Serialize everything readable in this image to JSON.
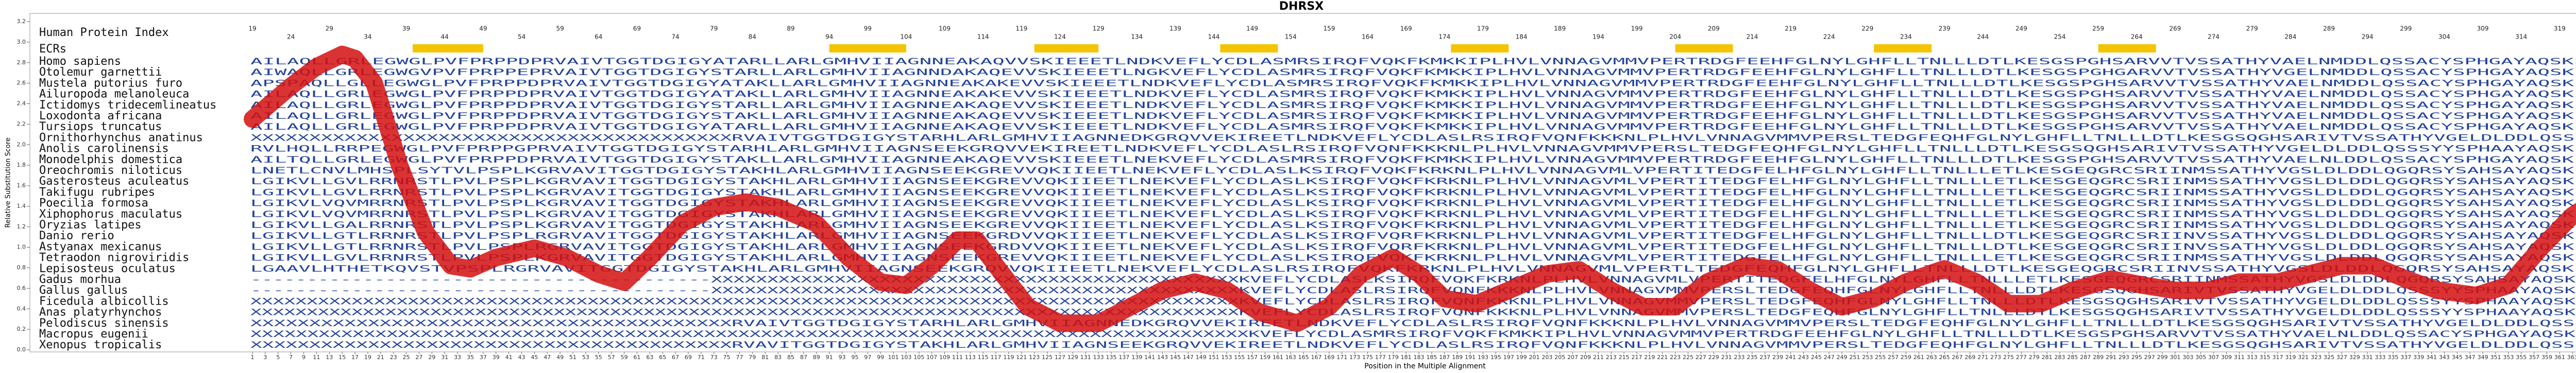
{
  "chart_data": {
    "type": "line",
    "title": "DHRSX",
    "y_label": "Relative Substitution Score",
    "x_label": "Position in the Multiple Alignment",
    "human_index_label": "Human Protein Index",
    "ecr_label": "ECRs",
    "human_index": {
      "x": [
        1,
        7,
        13,
        19,
        25,
        31,
        37,
        43,
        49,
        55,
        61,
        67,
        73,
        79,
        85,
        91,
        97,
        103,
        109,
        115,
        121,
        127,
        133,
        139,
        145,
        151,
        157,
        163,
        169,
        175,
        181,
        187,
        193,
        199,
        205,
        211,
        217,
        223,
        229,
        235,
        241,
        247,
        253,
        259,
        265,
        271,
        277,
        283,
        289,
        295,
        301,
        307,
        313,
        319,
        325,
        331,
        337,
        343,
        349,
        355,
        361,
        367
      ],
      "labels": [
        19,
        24,
        29,
        34,
        39,
        44,
        49,
        54,
        59,
        64,
        69,
        74,
        79,
        84,
        89,
        94,
        99,
        104,
        109,
        114,
        119,
        124,
        129,
        134,
        139,
        144,
        149,
        154,
        159,
        164,
        169,
        174,
        179,
        184,
        189,
        194,
        199,
        204,
        209,
        214,
        219,
        224,
        229,
        234,
        239,
        244,
        249,
        254,
        259,
        264,
        269,
        274,
        279,
        284,
        289,
        294,
        299,
        304,
        309,
        314,
        319,
        324
      ]
    },
    "ecrs": [
      [
        26,
        37
      ],
      [
        91,
        103
      ],
      [
        123,
        133
      ],
      [
        152,
        161
      ],
      [
        188,
        197
      ],
      [
        223,
        232
      ],
      [
        254,
        263
      ],
      [
        289,
        298
      ]
    ],
    "ecr_color": "#f5c400",
    "species": [
      "Homo sapiens",
      "Otolemur garnettii",
      "Mustela putorius furo",
      "Ailuropoda melanoleuca",
      "Ictidomys tridecemlineatus",
      "Loxodonta africana",
      "Tursiops truncatus",
      "Ornithorhynchus anatinus",
      "Anolis carolinensis",
      "Monodelphis domestica",
      "Oreochromis niloticus",
      "Gasterosteus aculeatus",
      "Takifugu rubripes",
      "Poecilia formosa",
      "Xiphophorus maculatus",
      "Oryzias latipes",
      "Danio rerio",
      "Astyanax mexicanus",
      "Tetraodon nigroviridis",
      "Lepisosteus oculatus",
      "Gadus morhua",
      "Gallus gallus",
      "Ficedula albicollis",
      "Anas platyrhynchos",
      "Pelodiscus sinensis",
      "Macropus eugenii",
      "Xenopus tropicalis"
    ],
    "sequences": [
      "AILAQLLGRLEGWGLPVFPRPPDPRVAIVTGGTDGIGYATARLLARLGMHVIIAGNNEAKAQVVSKIEEETLNDKVEFLYCDLASMRSIRQFVQKFKMKKIPLHVLVNNAGVMMVPERTRDGFEEHFGLNYLGHFLLTNLLLDTLKESGSPGHSARVVTVSSATHYVAELNMDDLQSSACYSPHGAYAQSKLA",
      "AIWAQLLGRLEGWGVPVFPRPPEPRVAIVTGGTDGIGYSTARLLARLGMHVIIAGNNDAKAQEVVSKIEEETLNGKVEFLYCDLASMRSIRQFVQKFKMKKIPLHVLVNNAGVMMVPERTRDGFEEHFGLNYLGHFLLTNLLLDTLKESGSPGHGARVVTVSSATHYVGELNMDDLQSSACYSPHGAYAQSKLA",
      "APSPAQLLGLLEGWGLPVFPRPPDPRVAIVTGGTDGIGYATAKLLARLGMHVIIAGNNEAKAKEVVSKIEEETLNDKVEFLYCDLASMRSIRQFVQKFKMKKIPLHVLVNNAGVMMVPERTRDGFEEHFGLNYLGHFLLTNLLLDTLKESGSPGHSARVVTVSSATHYVAELNMDDLQSSACYSPHGAYAQSKLA",
      "AILAQLLGRLEGWGLPVFPRPPDPRVAIVTGGTDGIGYATAKLLARLGMHVIIAGNNEAKAKEVVSKIEEETLNDKVEFLYCDLASMRSIRQFVQKFKMKKIPLHVLVNNAGVMMVPERTRDGFEEHFGLNYLGHFLLTNLLLDTLKESGSPGHSARVVTVSSATHYVAELNMDDLQSSACYSPHGAYAQSKLA",
      "AILAQLLGRLEGWGLPVFPRPPDPRVAIVTGGTDGIGYSTARLLARLGMHVIIAGNNEAKAQEVVSKIEEETLNDKVEFLYCDLASMRSIRQFVQKFKMKKIPLHVLVNNAGVMMVPERTRDGFEEHFGLNYLGHFLLTNLLLDTLKESGSPGHSARVVTVSSATHYVAELNMDDLQSSACYSPHGAYAQSKLA",
      "AILAQLLGRLEGWGLPVFPRPPDPRVAIVTGGTDGIGYSTAKLLARLGMHVIIAGNNEAKAQEVVSKIEEETLNDKVEFLYCDLASMRSIRQFVQKFKMKKIPLHVLVNNAGVMMVPERTRDGFEEHFGLNYLGHFLLTNLLLDTLKESGSPGHSARVVTVSSATHYVAELNMDDLQSSACYSPHGAYAQSKLA",
      "AILAQLLGRLEGWGLPVFPRPPDPRVAIVTGGTDGIGYATARLLARLGMHVIIAGNNEAKAQEVVSKIEEETLNDKVEFLYCDLASMRSIRQFVQKFKMKKIPLHVLVNNAGVMMVPERTRDGFEEHFGLNYLGHFLLTNLLLDTLKESGSPGHSARVVTVSSATHYVAELNMDDLQSSACYSPHGAYAQSKLA",
      "XXXXXXXXXXXXXXXXXXXXXXXXXXXXXXXXXXXXXXXXXRVAIVTGGTDGIGYSTARHLARLGMHVIIAGNNEDKGRQVVEKIREETLNDKVEFLYCDLASLRSIRQFVQNFKKKNLPLHVLVNNAGVMMVPERSLTEDGFEQHFGLNYLGHFLLTNLLLDTLKESGSQGHSARIVTVSSATHYVGELDLDDLQSSSY",
      "RVLHQLLRRPEGWGLPVFPRPPGPRVAIVTGGTDGIGYSTARHLARLGMHVIIAGNSEEKGRQVVEKIREETLNDKVEFLYCDLASLRSIRQFVQNFKKKNLPLHVLVNNAGVMMVPERSLTEDGFEQHFGLNYLGHFLLTNLLLDTLKESGSQGHSARIVTVSSATHYVGELDLDDLQSSSYYSPHAAYAQSKLA",
      "AILTQLLGRLEGWGLPVFPRPPDPRVAIVTGGTDGIGYSTAKLLARLGMHVIIAGNNEAKAQEVVSKIEEETLNEKVEFLYCDLASMRSIRQFVQKFKMKKIPLHVLVNNAGVMMVPERTRDGFEEHFGLNYLGHFLLTNLLLDTLKESGSPGHSARVVTVSSATHYVAELNLDDLQSSACYSPHGAYAQSKLA",
      "LNETLCNVLMHSPLSYTVLPSPLKGRVAVITGGTDGIGYSTAKHLARLGMHVIIAGNSEEKGREVVQKIIEETLNEKVEFLYCDLASLKSIRQFVQKFKRKNLPLHVLVNNAGVMLVPERTITEDGFELHFGLNYLGHFLLTNLLLETLKESGEQGRCSRIINMSSATHYVGSLDLDDLQGQRSYSAHSAYAQSKLA",
      "LGIKVLLGVLRRNRSTLPVLPSPLKGRVAVITGGTDGIGYSTAKHLARLGMHVIIAGNSEEKGREVVQKIIEETLNEKVEFLYCDLASLKSIRQFVQKFKRKNLPLHVLVNNAGVMLVPERTITEDGFELHFGLNYLGHFLLTNLLLETLKESGEQGRCSRIINMSSATHYVGSLDLDDLQGQRSYSAHSAYAQSKLA",
      "LGIKVLLGVLRRNRSTLPVLPSPLKGRVAVITGGTDGIGYSTAKHLARLGMHVIIAGNSEEKGREVVQKIIEETLNEKVEFLYCDLASLKSIRQFVQKFKRKNLPLHVLVNNAGVMLVPERTITEDGFELHFGLNYLGHFLLTNLLLETLKESGEQGRCSRIINMSSATHYVGSLDLDDLQGQRSYSAHSAYAQSKLA",
      "LGIKVLVQVMRRNRSTLPVLPSPLKGRVAVITGGTDGIGYSTAKHLARLGMHVIIAGNSEEKGREVVQKIIEETLNEKVEFLYCDLASLKSIRQFVQKFKRKNLPLHVLVNNAGVMLVPERTITEDGFELHFGLNYLGHFLLTNLLLETLKESGEQGRCSRIINMSSATHYVGSLDLDDLQGQRSYSAHSAYAQSKLA",
      "LGIKVLVQVMRRNRSTLPVLPSPLKGRVAVITGGTDGIGYSTAKHLARLGMHVIIAGNSEEKGREVVQKIIEETLNEKVEFLYCDLASLKSIRQFVQKFKRKNLPLHVLVNNAGVMLVPERTITEDGFELHFGLNYLGHFLLTNLLLETLKESGEQGRCSRIINMSSATHYVGSLDLDDLQGQRSYSAHSAYAQSKLA",
      "LGIKVLLGALRRNRSTLPVLPSPLKGRVAVITGGTDGIGYSTAKHLARLGMHVIIAGNSEEKGREVVQKIIEETLNEKVEFLYCDLASLKSIRQFVQKFKRKNLPLHVLVNNAGVMLVPERTITEDGFELHFGLNYLGHFLLTNLLLETLKESGEQGRCSRIINMSSATHYVGSLDLDDLQGQRSYSAHSAYAQSKLA",
      "LGIKVLLGTLRRNRSTLPVLPSPLRGRVAVITGGTDGIGYSTAKHLARLGMHVIIAGNSEEKGRDVVQKIIEETLNEKVEFLYCDLASLKSIRQFVQRFKRKNLPLHVLVNNAGVMLVPERTITEDGFELHFGLNYLGHFLLTNLLLDTLKESGEQGRCSRIINVSSATHYVGSLDLDDLQGQRSYSAHSAYAQSKLA",
      "LGIKVLLGTLRRNRSTLPVLPSPLRGRVAVITGGTDGIGYSTAKHLARLGMHVIIAGNSEEKGRDVVQKIIEETLNEKVEFLYCDLASLKSIRQFVQRFKRKNLPLHVLVNNAGVMLVPERTITEDGFELHFGLNYLGHFLLTNLLLDTLKESGEQGRCSRIINVSSATHYVGSLDLDDLQGQRSYSAHSAYAQSKLA",
      "LGIKVLLGVLRRNRSTLPVLPSPLKGRVAVITGGTDGIGYSTAKHLARLGMHVIIAGNSEEKGREVVQKIIEETLNEKVEFLYCDLASLKSIRQFVQKFKRKNLPLHVLVNNAGVMLVPERTITEDGFELHFGLNYLGHFLLTNLLLETLKESGEQGRCSRIINMSSATHYVGSLDLDDLQGQRSYSAHSAYAQSKLA",
      "LGAAVLHTHETKQVSTVPSPLRGRVAVITGGTDGIGYSTAKHLARLGMHVIIAGNSEEKGRQVVQKIIEETLNEKVEFLYCDLASLRSIRQFVQKFKRKNLPLHVLVNNAGVMLVPERTLTEDGFEQHFGLNYLGHFLLTNLLLDTLKESGEQGRCSRIINVSSATHYVGSLDLDDLQGQRSYSAHSAYAQSKLA",
      "-----------------------------------------XXXXXXXXXXXXXXXXXXXXXXXXXXXXXXXXXXXXXXXXXXXXXXXKVEFLYCDLASLKSIRQFVQKFKRKNLPLHVLVNNAGVMLVPERTITEDGFELHFGLNYLGHFLLTNLLLETLKESGEQGRCSRIINMSSATHYVGSLDLDDLQGQRSYSAHSAYAQSKLA",
      "-----------------------------------------XXXXXXXXXXXXXXXXXXXXXXXXXXXXXXXXXXXXXXXXXXXXXXXKVEFLYCDLASLRSIRQFVQNFKKKNLPLHVLVNNAGVMMVPERSLTEDGFEQHFGLNYLGHFLLTNLLLDTLKESGSQGHSARIVTVSSATHYVGELDLDDLQSSSYYSPHAAYAQSKLA",
      "XXXXXXXXXXXXXXXXXXXXXXXXXXXXXXXXXXXXXXXXXXXXXXXXXXXXXXXXXXXXXXXXXXXXXXXXXXXXXXXXXXXXXXXXKVEFLYCDLASLRSIRQFVQNFKKKNLPLHVLVNNAGVMMVPERSLTEDGFEQHFGLNYLGHFLLTNLLLDTLKESGSQGHSARIVTVSSATHYVGELDLDDLQSSSYYSPHAAYAQSKLA",
      "XXXXXXXXXXXXXXXXXXXXXXXXXXXXXXXXXXXXXXXXXXXXXXXXXXXXXXXXXXXXXXXXXXXXXXXXXXXXXXXXXXXXXXXXKVEFLYCDLASLRSIRQFVQNFKKKNLPLHVLVNNAGVMMVPERSLTEDGFEQHFGLNYLGHFLLTNLLLDTLKESGSQGHSARIVTVSSATHYVGELDLDDLQSSSYYSPHAAYAQSKLA",
      "XXXXXXXXXXXXXXXXXXXXXXXXXXXXXXXXXXXXXXXXXRVAIVTGGTDGIGYSTARHLARLGMHVIIAGNNEDKGRQVVEKIREETLNDKVEFLYCDLASLRSIRQFVQNFKKKNLPLHVLVNNAGVMMVPERSLTEDGFEQHFGLNYLGHFLLTNLLLDTLKESGSQGHSARIVTVSSATHYVGELDLDDLQSSSY",
      "XXXXXXXXXXXXXXXXXXXXXXXXXXXXXXXXXXXXXXXXXXXXXXXXXXXXXXXXXXXXXXXXXXXXXXXXXXXXXXXXXXXXXXXXKVEFLYCDLASMRSIRQFVQKFKMKKIPLHVLVNNAGVMMVPERTRDGFEEHFGLNYLGHFLLTNLLLDTLKESGSPGHSARVVTVSSATHYVAELNLDDLQSSACYSPHGAYAQSKLA",
      "XXXXXXXXXXXXXXXXXXXXXXXXXXXXXXXXXXXXXXXXXRVAVITGGTDGIGYSTAKHLARLGMHVIIAGNSEEKGRQVVEKIREETLNDKVEFLYCDLASLRSIRQFVQNFKKKNLPLHVLVNNAGVMMVPERSLTEDGFEQHFGLNYLGHFLLTNLLLDTLKESGSQGHSARIVTVSSATHYVGELDLDDLQSSSY"
    ],
    "x": [
      1,
      7,
      11,
      15,
      17,
      20,
      24,
      28,
      32,
      35,
      39,
      45,
      50,
      55,
      59,
      63,
      68,
      73,
      78,
      83,
      89,
      94,
      99,
      103,
      107,
      111,
      114,
      118,
      122,
      127,
      133,
      138,
      143,
      148,
      153,
      158,
      164,
      169,
      174,
      179,
      183,
      187,
      192,
      197,
      203,
      208,
      213,
      218,
      223,
      228,
      234,
      239,
      244,
      249,
      254,
      259,
      265,
      270,
      275,
      280,
      285,
      291,
      296,
      301,
      306,
      311,
      317,
      322,
      327,
      332,
      337,
      342,
      348,
      353,
      358,
      363,
      367
    ],
    "series": [
      {
        "color": "#d40f0f",
        "values": [
          2.25,
          2.57,
          2.76,
          2.88,
          2.84,
          2.6,
          1.79,
          1.15,
          0.82,
          0.79,
          0.9,
          0.99,
          0.9,
          0.74,
          0.66,
          0.9,
          1.23,
          1.39,
          1.44,
          1.39,
          1.23,
          0.9,
          0.66,
          0.63,
          0.82,
          1.07,
          1.07,
          0.74,
          0.42,
          0.26,
          0.26,
          0.42,
          0.58,
          0.66,
          0.58,
          0.37,
          0.26,
          0.42,
          0.74,
          0.9,
          0.74,
          0.5,
          0.45,
          0.58,
          0.74,
          0.78,
          0.58,
          0.42,
          0.42,
          0.66,
          0.82,
          0.78,
          0.58,
          0.42,
          0.5,
          0.66,
          0.79,
          0.66,
          0.45,
          0.45,
          0.58,
          0.69,
          0.63,
          0.58,
          0.58,
          0.66,
          0.66,
          0.74,
          0.82,
          0.82,
          0.69,
          0.58,
          0.53,
          0.63,
          0.99,
          1.31,
          1.47
        ]
      }
    ],
    "xlim": [
      1,
      367
    ],
    "ylim": [
      0,
      3.2
    ],
    "yticks": [
      {
        "value": 0,
        "label": "0.0"
      },
      0.2,
      0.4,
      0.6,
      0.8,
      {
        "value": 1,
        "label": "1.0"
      },
      1.2,
      1.4,
      1.6,
      1.8,
      {
        "value": 2,
        "label": "2.0"
      },
      2.2,
      2.4,
      2.6,
      2.8,
      {
        "value": 3,
        "label": "3.0"
      },
      3.2
    ],
    "xticks": [
      1,
      3,
      5,
      7,
      9,
      11,
      13,
      15,
      17,
      19,
      21,
      23,
      25,
      27,
      29,
      31,
      33,
      35,
      37,
      39,
      41,
      43,
      45,
      47,
      49,
      51,
      53,
      55,
      57,
      59,
      61,
      63,
      65,
      67,
      69,
      71,
      73,
      75,
      77,
      79,
      81,
      83,
      85,
      87,
      89,
      91,
      93,
      95,
      97,
      99,
      101,
      103,
      105,
      107,
      109,
      111,
      113,
      115,
      117,
      119,
      121,
      123,
      125,
      127,
      129,
      131,
      133,
      135,
      137,
      139,
      141,
      143,
      145,
      147,
      149,
      151,
      153,
      155,
      157,
      159,
      161,
      163,
      165,
      167,
      169,
      171,
      173,
      175,
      177,
      179,
      181,
      183,
      185,
      187,
      189,
      191,
      193,
      195,
      197,
      199,
      201,
      203,
      205,
      207,
      209,
      211,
      213,
      215,
      217,
      219,
      221,
      223,
      225,
      227,
      229,
      231,
      233,
      235,
      237,
      239,
      241,
      243,
      245,
      247,
      249,
      251,
      253,
      255,
      257,
      259,
      261,
      263,
      265,
      267,
      269,
      271,
      273,
      275,
      277,
      279,
      281,
      283,
      285,
      287,
      289,
      291,
      293,
      295,
      297,
      299,
      301,
      303,
      305,
      307,
      309,
      311,
      313,
      315,
      317,
      319,
      321,
      323,
      325,
      327,
      329,
      331,
      333,
      335,
      337,
      339,
      341,
      343,
      345,
      347,
      349,
      351,
      353,
      355,
      357,
      359,
      361,
      363,
      365,
      367
    ]
  }
}
